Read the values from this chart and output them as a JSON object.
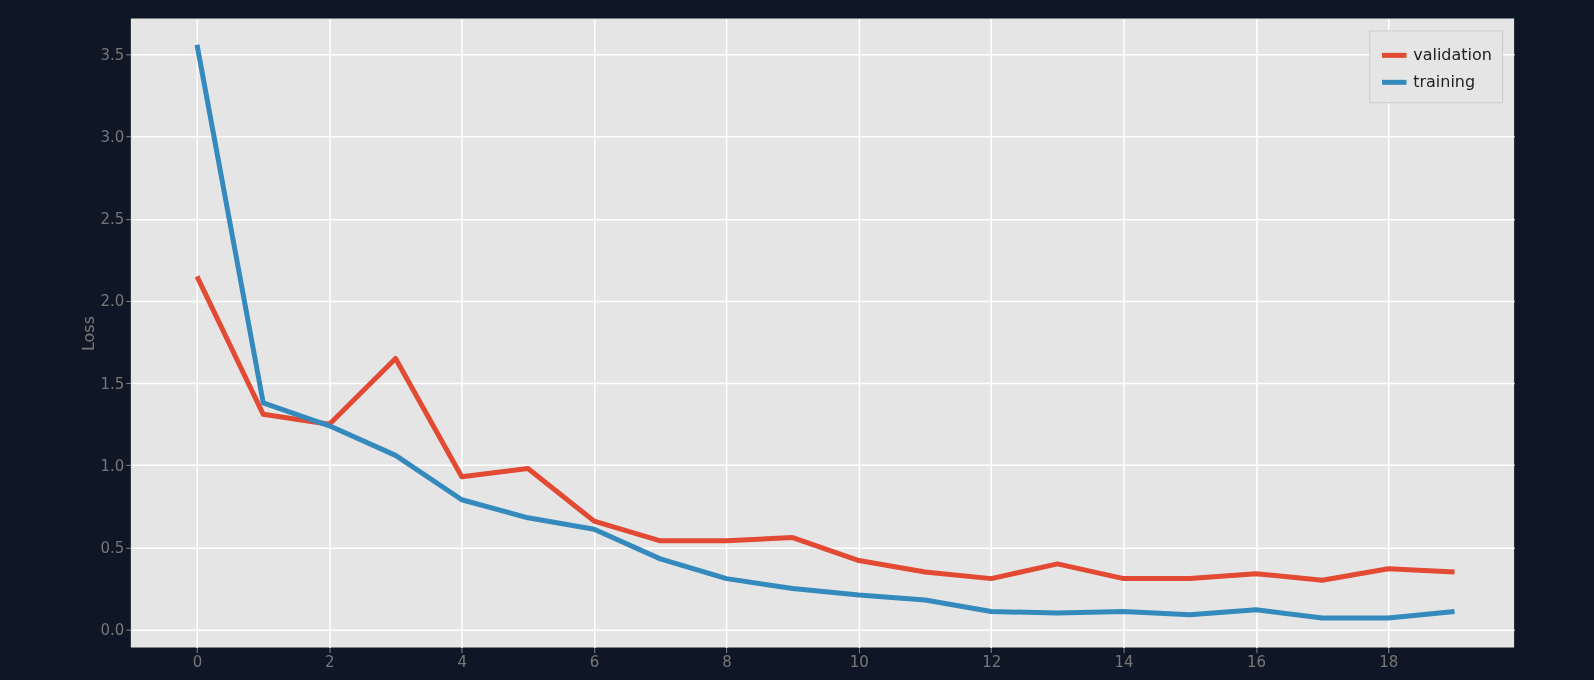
{
  "chart_data": {
    "type": "line",
    "ylabel": "Loss",
    "x": [
      0,
      1,
      2,
      3,
      4,
      5,
      6,
      7,
      8,
      9,
      10,
      11,
      12,
      13,
      14,
      15,
      16,
      17,
      18,
      19
    ],
    "series": [
      {
        "name": "validation",
        "color": "#e24a33",
        "values": [
          2.15,
          1.31,
          1.25,
          1.65,
          0.93,
          0.98,
          0.66,
          0.54,
          0.54,
          0.56,
          0.42,
          0.35,
          0.31,
          0.4,
          0.31,
          0.31,
          0.34,
          0.3,
          0.37,
          0.35
        ]
      },
      {
        "name": "training",
        "color": "#348abd",
        "values": [
          3.56,
          1.38,
          1.24,
          1.06,
          0.79,
          0.68,
          0.61,
          0.43,
          0.31,
          0.25,
          0.21,
          0.18,
          0.11,
          0.1,
          0.11,
          0.09,
          0.12,
          0.07,
          0.07,
          0.11
        ]
      }
    ],
    "xlim": [
      -1.0,
      19.9
    ],
    "xticks": [
      0,
      2,
      4,
      6,
      8,
      10,
      12,
      14,
      16,
      18
    ],
    "ylim": [
      -0.11,
      3.72
    ],
    "yticks": [
      {
        "value": 0,
        "label": "0.0"
      },
      0.5,
      {
        "value": 1,
        "label": "1.0"
      },
      1.5,
      {
        "value": 2,
        "label": "2.0"
      },
      2.5,
      {
        "value": 3,
        "label": "3.0"
      },
      3.5
    ],
    "grid": true,
    "legend": "top right",
    "line_style": "solid",
    "marker": "none"
  }
}
